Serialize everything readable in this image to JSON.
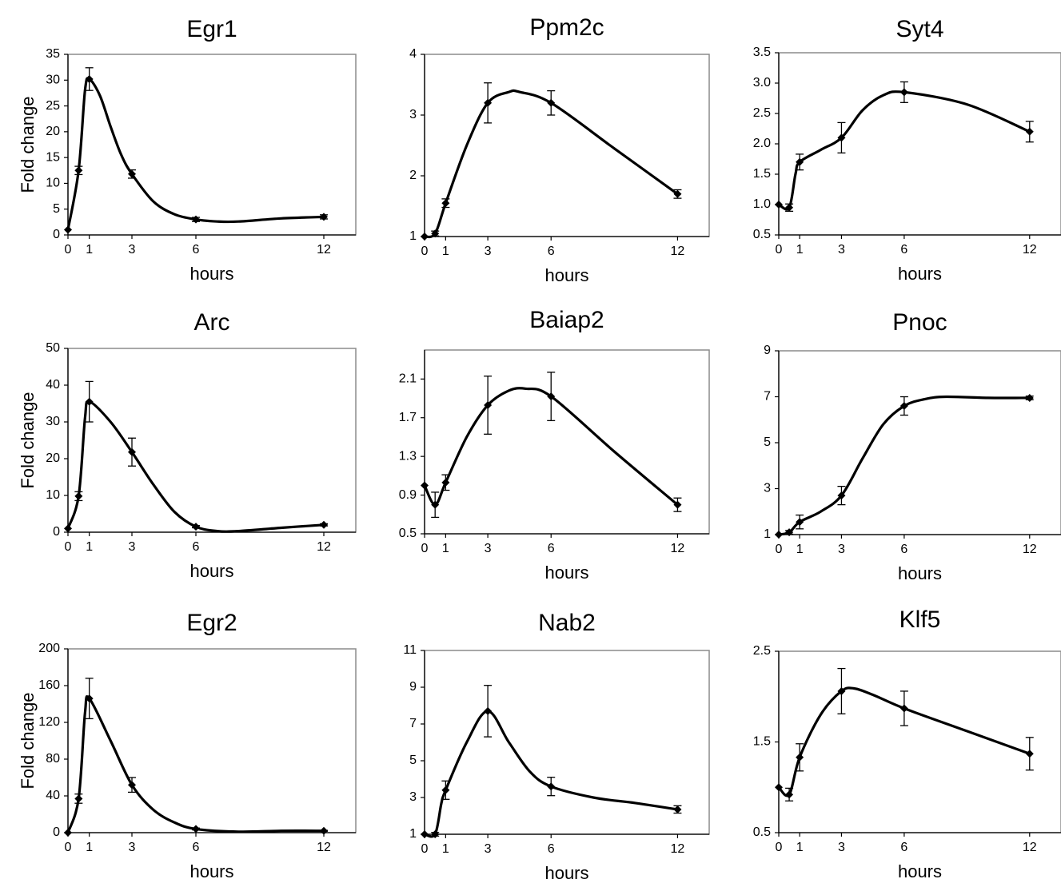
{
  "figure": {
    "xlabel": "hours",
    "ylabel": "Fold change"
  },
  "chart_data": [
    {
      "type": "line",
      "title": "Egr1",
      "xlabel": "hours",
      "ylabel": "Fold change",
      "xlim": [
        0,
        13.5
      ],
      "xticks": [
        0,
        1,
        3,
        6,
        12
      ],
      "ylim": [
        0,
        35
      ],
      "yticks": [
        0,
        5,
        10,
        15,
        20,
        25,
        30,
        35
      ],
      "ytick_labels": [
        "0",
        "5",
        "10",
        "15",
        "20",
        "25",
        "30",
        "35"
      ],
      "x": [
        0,
        0.5,
        1,
        3,
        6,
        12
      ],
      "y": [
        1,
        12.5,
        30.2,
        11.8,
        3,
        3.5
      ],
      "err": [
        0,
        0.8,
        2.2,
        0.8,
        0.4,
        0.4
      ],
      "curve": [
        [
          0,
          1
        ],
        [
          0.5,
          12.5
        ],
        [
          0.8,
          28
        ],
        [
          1,
          30.2
        ],
        [
          1.5,
          27
        ],
        [
          2,
          21
        ],
        [
          2.5,
          15.5
        ],
        [
          3,
          11.8
        ],
        [
          4,
          6.5
        ],
        [
          5,
          4
        ],
        [
          6,
          3
        ],
        [
          7,
          2.6
        ],
        [
          8,
          2.6
        ],
        [
          10,
          3.2
        ],
        [
          12,
          3.5
        ]
      ]
    },
    {
      "type": "line",
      "title": "Ppm2c",
      "xlabel": "hours",
      "ylabel": "",
      "xlim": [
        0,
        13.5
      ],
      "xticks": [
        0,
        1,
        3,
        6,
        12
      ],
      "ylim": [
        1,
        4
      ],
      "yticks": [
        1,
        2,
        3,
        4
      ],
      "ytick_labels": [
        "1",
        "2",
        "3",
        "4"
      ],
      "x": [
        0,
        0.5,
        1,
        3,
        6,
        12
      ],
      "y": [
        1,
        1.05,
        1.55,
        3.2,
        3.2,
        1.7
      ],
      "err": [
        0,
        0.04,
        0.07,
        0.33,
        0.2,
        0.07
      ],
      "curve": [
        [
          0,
          1
        ],
        [
          0.5,
          1.05
        ],
        [
          1,
          1.55
        ],
        [
          2,
          2.5
        ],
        [
          3,
          3.2
        ],
        [
          4,
          3.38
        ],
        [
          4.5,
          3.38
        ],
        [
          6,
          3.2
        ],
        [
          9,
          2.45
        ],
        [
          12,
          1.7
        ]
      ]
    },
    {
      "type": "line",
      "title": "Syt4",
      "xlabel": "hours",
      "ylabel": "",
      "xlim": [
        0,
        13.5
      ],
      "xticks": [
        0,
        1,
        3,
        6,
        12
      ],
      "ylim": [
        0.5,
        3.5
      ],
      "yticks": [
        0.5,
        1.0,
        1.5,
        2.0,
        2.5,
        3.0,
        3.5
      ],
      "ytick_labels": [
        "0.5",
        "1.0",
        "1.5",
        "2.0",
        "2.5",
        "3.0",
        "3.5"
      ],
      "x": [
        0,
        0.5,
        1,
        3,
        6,
        12
      ],
      "y": [
        1,
        0.95,
        1.7,
        2.1,
        2.85,
        2.2
      ],
      "err": [
        0,
        0.06,
        0.13,
        0.25,
        0.17,
        0.17
      ],
      "curve": [
        [
          0,
          1
        ],
        [
          0.5,
          0.95
        ],
        [
          0.8,
          1.5
        ],
        [
          1,
          1.7
        ],
        [
          2,
          1.9
        ],
        [
          3,
          2.1
        ],
        [
          4,
          2.55
        ],
        [
          5,
          2.8
        ],
        [
          6,
          2.85
        ],
        [
          9,
          2.65
        ],
        [
          12,
          2.2
        ]
      ]
    },
    {
      "type": "line",
      "title": "Arc",
      "xlabel": "hours",
      "ylabel": "Fold change",
      "xlim": [
        0,
        13.5
      ],
      "xticks": [
        0,
        1,
        3,
        6,
        12
      ],
      "ylim": [
        0,
        50
      ],
      "yticks": [
        0,
        10,
        20,
        30,
        40,
        50
      ],
      "ytick_labels": [
        "0",
        "10",
        "20",
        "30",
        "40",
        "50"
      ],
      "x": [
        0,
        0.5,
        1,
        3,
        6,
        12
      ],
      "y": [
        1,
        9.8,
        35.5,
        21.8,
        1.5,
        2
      ],
      "err": [
        0,
        1.2,
        5.5,
        3.8,
        0.3,
        0.3
      ],
      "curve": [
        [
          0,
          1
        ],
        [
          0.5,
          9.8
        ],
        [
          0.8,
          31
        ],
        [
          1,
          35.5
        ],
        [
          2,
          30
        ],
        [
          3,
          21.8
        ],
        [
          4,
          13
        ],
        [
          5,
          5.5
        ],
        [
          6,
          1.5
        ],
        [
          7,
          0.3
        ],
        [
          8,
          0.3
        ],
        [
          10,
          1.2
        ],
        [
          12,
          2
        ]
      ]
    },
    {
      "type": "line",
      "title": "Baiap2",
      "xlabel": "hours",
      "ylabel": "",
      "xlim": [
        0,
        13.5
      ],
      "xticks": [
        0,
        1,
        3,
        6,
        12
      ],
      "ylim": [
        0.5,
        2.4
      ],
      "yticks": [
        0.5,
        0.9,
        1.3,
        1.7,
        2.1
      ],
      "ytick_labels": [
        "0.5",
        "0.9",
        "1.3",
        "1.7",
        "2.1"
      ],
      "x": [
        0,
        0.5,
        1,
        3,
        6,
        12
      ],
      "y": [
        1,
        0.8,
        1.03,
        1.83,
        1.92,
        0.8
      ],
      "err": [
        0,
        0.13,
        0.08,
        0.3,
        0.25,
        0.07
      ],
      "curve": [
        [
          0,
          1
        ],
        [
          0.5,
          0.8
        ],
        [
          1,
          1.03
        ],
        [
          2,
          1.5
        ],
        [
          3,
          1.83
        ],
        [
          4,
          1.98
        ],
        [
          4.8,
          2.0
        ],
        [
          6,
          1.92
        ],
        [
          9,
          1.35
        ],
        [
          12,
          0.8
        ]
      ]
    },
    {
      "type": "line",
      "title": "Pnoc",
      "xlabel": "hours",
      "ylabel": "",
      "xlim": [
        0,
        13.5
      ],
      "xticks": [
        0,
        1,
        3,
        6,
        12
      ],
      "ylim": [
        1,
        9
      ],
      "yticks": [
        1,
        3,
        5,
        7,
        9
      ],
      "ytick_labels": [
        "1",
        "3",
        "5",
        "7",
        "9"
      ],
      "x": [
        0,
        0.5,
        1,
        3,
        6,
        12
      ],
      "y": [
        1,
        1.1,
        1.55,
        2.7,
        6.6,
        6.95
      ],
      "err": [
        0,
        0.08,
        0.3,
        0.4,
        0.4,
        0.08
      ],
      "curve": [
        [
          0,
          1
        ],
        [
          0.5,
          1.1
        ],
        [
          1,
          1.55
        ],
        [
          2,
          2
        ],
        [
          3,
          2.7
        ],
        [
          4,
          4.3
        ],
        [
          5,
          5.8
        ],
        [
          6,
          6.6
        ],
        [
          7,
          6.9
        ],
        [
          8,
          7.0
        ],
        [
          10,
          6.95
        ],
        [
          12,
          6.95
        ]
      ]
    },
    {
      "type": "line",
      "title": "Egr2",
      "xlabel": "hours",
      "ylabel": "Fold change",
      "xlim": [
        0,
        13.5
      ],
      "xticks": [
        0,
        1,
        3,
        6,
        12
      ],
      "ylim": [
        0,
        200
      ],
      "yticks": [
        0,
        40,
        80,
        120,
        160,
        200
      ],
      "ytick_labels": [
        "0",
        "40",
        "80",
        "120",
        "160",
        "200"
      ],
      "x": [
        0,
        0.5,
        1,
        3,
        6,
        12
      ],
      "y": [
        0,
        37,
        146,
        52,
        4,
        2
      ],
      "err": [
        0,
        5,
        22,
        8,
        1,
        0.5
      ],
      "curve": [
        [
          0,
          0
        ],
        [
          0.5,
          37
        ],
        [
          0.8,
          130
        ],
        [
          1,
          146
        ],
        [
          2,
          100
        ],
        [
          3,
          52
        ],
        [
          4,
          25
        ],
        [
          5,
          11
        ],
        [
          6,
          4
        ],
        [
          8,
          1
        ],
        [
          10,
          2
        ],
        [
          12,
          2
        ]
      ]
    },
    {
      "type": "line",
      "title": "Nab2",
      "xlabel": "hours",
      "ylabel": "",
      "xlim": [
        0,
        13.5
      ],
      "xticks": [
        0,
        1,
        3,
        6,
        12
      ],
      "ylim": [
        1,
        11
      ],
      "yticks": [
        1,
        3,
        5,
        7,
        9,
        11
      ],
      "ytick_labels": [
        "1",
        "3",
        "5",
        "7",
        "9",
        "11"
      ],
      "x": [
        0,
        0.5,
        1,
        3,
        6,
        12
      ],
      "y": [
        1,
        1,
        3.4,
        7.7,
        3.6,
        2.35
      ],
      "err": [
        0,
        0.1,
        0.5,
        1.4,
        0.5,
        0.2
      ],
      "curve": [
        [
          0,
          1
        ],
        [
          0.5,
          1
        ],
        [
          0.8,
          2.7
        ],
        [
          1,
          3.4
        ],
        [
          2,
          6
        ],
        [
          3,
          7.7
        ],
        [
          4,
          6
        ],
        [
          5,
          4.4
        ],
        [
          6,
          3.6
        ],
        [
          8,
          3
        ],
        [
          10,
          2.7
        ],
        [
          12,
          2.35
        ]
      ]
    },
    {
      "type": "line",
      "title": "Klf5",
      "xlabel": "hours",
      "ylabel": "",
      "xlim": [
        0,
        13.5
      ],
      "xticks": [
        0,
        1,
        3,
        6,
        12
      ],
      "ylim": [
        0.5,
        2.5
      ],
      "yticks": [
        0.5,
        1.5,
        2.5
      ],
      "ytick_labels": [
        "0.5",
        "1.5",
        "2.5"
      ],
      "x": [
        0,
        0.5,
        1,
        3,
        6,
        12
      ],
      "y": [
        1,
        0.92,
        1.33,
        2.06,
        1.87,
        1.37
      ],
      "err": [
        0,
        0.07,
        0.15,
        0.25,
        0.19,
        0.18
      ],
      "curve": [
        [
          0,
          1
        ],
        [
          0.5,
          0.92
        ],
        [
          1,
          1.33
        ],
        [
          2,
          1.8
        ],
        [
          3,
          2.06
        ],
        [
          3.6,
          2.09
        ],
        [
          4.5,
          2.02
        ],
        [
          6,
          1.87
        ],
        [
          9,
          1.62
        ],
        [
          12,
          1.37
        ]
      ]
    }
  ]
}
